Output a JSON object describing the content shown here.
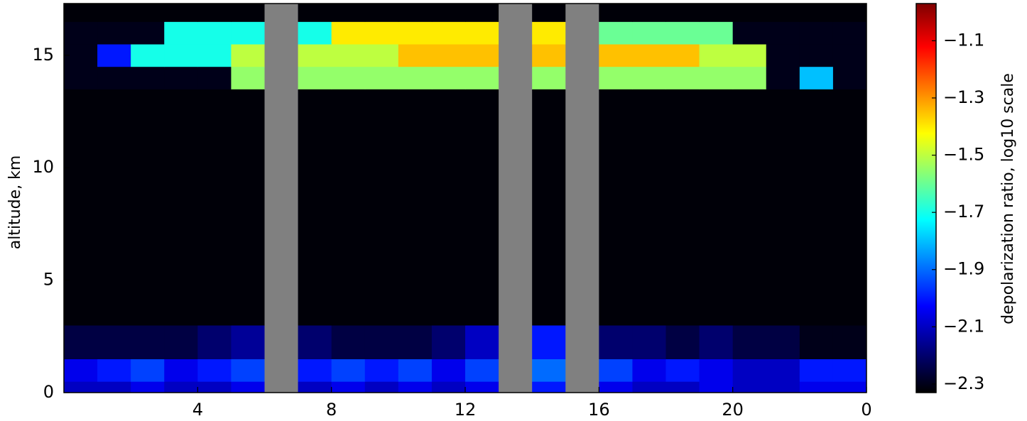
{
  "chart_data": {
    "type": "heatmap",
    "ylabel": "altitude, km",
    "colorbar_label": "depolarization ratio, log10 scale",
    "xlim": [
      0,
      24
    ],
    "xticks": [
      4,
      8,
      12,
      16,
      20,
      {
        "value": 24,
        "label": "0"
      }
    ],
    "ylim": [
      0,
      17.3
    ],
    "yticks": [
      0,
      5,
      10,
      15
    ],
    "clim": [
      -2.33,
      -0.97
    ],
    "cticks": [
      {
        "value": -2.3,
        "label": "−2.3"
      },
      {
        "value": -2.1,
        "label": "−2.1"
      },
      {
        "value": -1.9,
        "label": "−1.9"
      },
      {
        "value": -1.7,
        "label": "−1.7"
      },
      {
        "value": -1.5,
        "label": "−1.5"
      },
      {
        "value": -1.3,
        "label": "−1.3"
      },
      {
        "value": -1.1,
        "label": "−1.1"
      }
    ],
    "colormap": [
      "#000000",
      "#00007f",
      "#0000ff",
      "#007fff",
      "#00ffff",
      "#7fff7f",
      "#ffff00",
      "#ff7f00",
      "#ff0000",
      "#7f0000"
    ],
    "missing_color": "#808080",
    "xbins": [
      0,
      1,
      2,
      3,
      4,
      5,
      6,
      7,
      8,
      9,
      10,
      11,
      12,
      13,
      14,
      15,
      16,
      17,
      18,
      19,
      20,
      21,
      22,
      23,
      24
    ],
    "ybins": [
      0,
      0.5,
      1.5,
      3,
      13.5,
      14.5,
      15.5,
      16.5,
      17.3
    ],
    "z": [
      [
        -2.1,
        -2.1,
        -2.05,
        -2.1,
        -2.1,
        -2.05,
        null,
        -2.1,
        -2.05,
        -2.1,
        -2.05,
        -2.1,
        -2.05,
        null,
        -2.0,
        null,
        -2.05,
        -2.1,
        -2.1,
        -2.05,
        -2.1,
        -2.1,
        -2.05,
        -2.05
      ],
      [
        -2.05,
        -2.0,
        -1.95,
        -2.05,
        -2.0,
        -1.95,
        null,
        -2.0,
        -1.95,
        -2.0,
        -1.95,
        -2.05,
        -1.95,
        null,
        -1.9,
        null,
        -1.95,
        -2.05,
        -2.0,
        -2.05,
        -2.1,
        -2.1,
        -2.0,
        -2.0
      ],
      [
        -2.25,
        -2.25,
        -2.25,
        -2.25,
        -2.2,
        -2.15,
        null,
        -2.2,
        -2.25,
        -2.25,
        -2.25,
        -2.2,
        -2.1,
        null,
        -2.0,
        null,
        -2.2,
        -2.2,
        -2.25,
        -2.2,
        -2.25,
        -2.25,
        -2.3,
        -2.3
      ],
      [
        -2.32,
        -2.32,
        -2.32,
        -2.32,
        -2.32,
        -2.32,
        null,
        -2.32,
        -2.32,
        -2.32,
        -2.32,
        -2.32,
        -2.32,
        null,
        -2.32,
        null,
        -2.32,
        -2.32,
        -2.32,
        -2.32,
        -2.32,
        -2.32,
        -2.32,
        -2.32
      ],
      [
        -2.3,
        -2.3,
        -2.3,
        -2.3,
        -2.3,
        -1.55,
        null,
        -1.55,
        -1.55,
        -1.55,
        -1.55,
        -1.55,
        -1.55,
        null,
        -1.55,
        null,
        -1.55,
        -1.55,
        -1.55,
        -1.55,
        -1.55,
        -2.3,
        -1.8,
        -2.3
      ],
      [
        -2.3,
        -2.0,
        -1.7,
        -1.7,
        -1.7,
        -1.5,
        null,
        -1.5,
        -1.5,
        -1.5,
        -1.35,
        -1.35,
        -1.35,
        null,
        -1.35,
        null,
        -1.35,
        -1.35,
        -1.35,
        -1.5,
        -1.5,
        -2.3,
        -2.3,
        -2.3
      ],
      [
        -2.3,
        -2.3,
        -2.3,
        -1.7,
        -1.7,
        -1.7,
        null,
        -1.7,
        -1.4,
        -1.4,
        -1.4,
        -1.4,
        -1.4,
        null,
        -1.4,
        null,
        -1.6,
        -1.6,
        -1.6,
        -1.6,
        -2.3,
        -2.3,
        -2.3,
        -2.3
      ],
      [
        -2.32,
        -2.32,
        -2.32,
        -2.32,
        -2.32,
        -2.32,
        null,
        -2.32,
        -2.32,
        -2.32,
        -2.32,
        -2.32,
        -2.32,
        null,
        -2.32,
        null,
        -2.32,
        -2.32,
        -2.32,
        -2.32,
        -2.32,
        -2.32,
        -2.32,
        -2.32
      ]
    ]
  }
}
